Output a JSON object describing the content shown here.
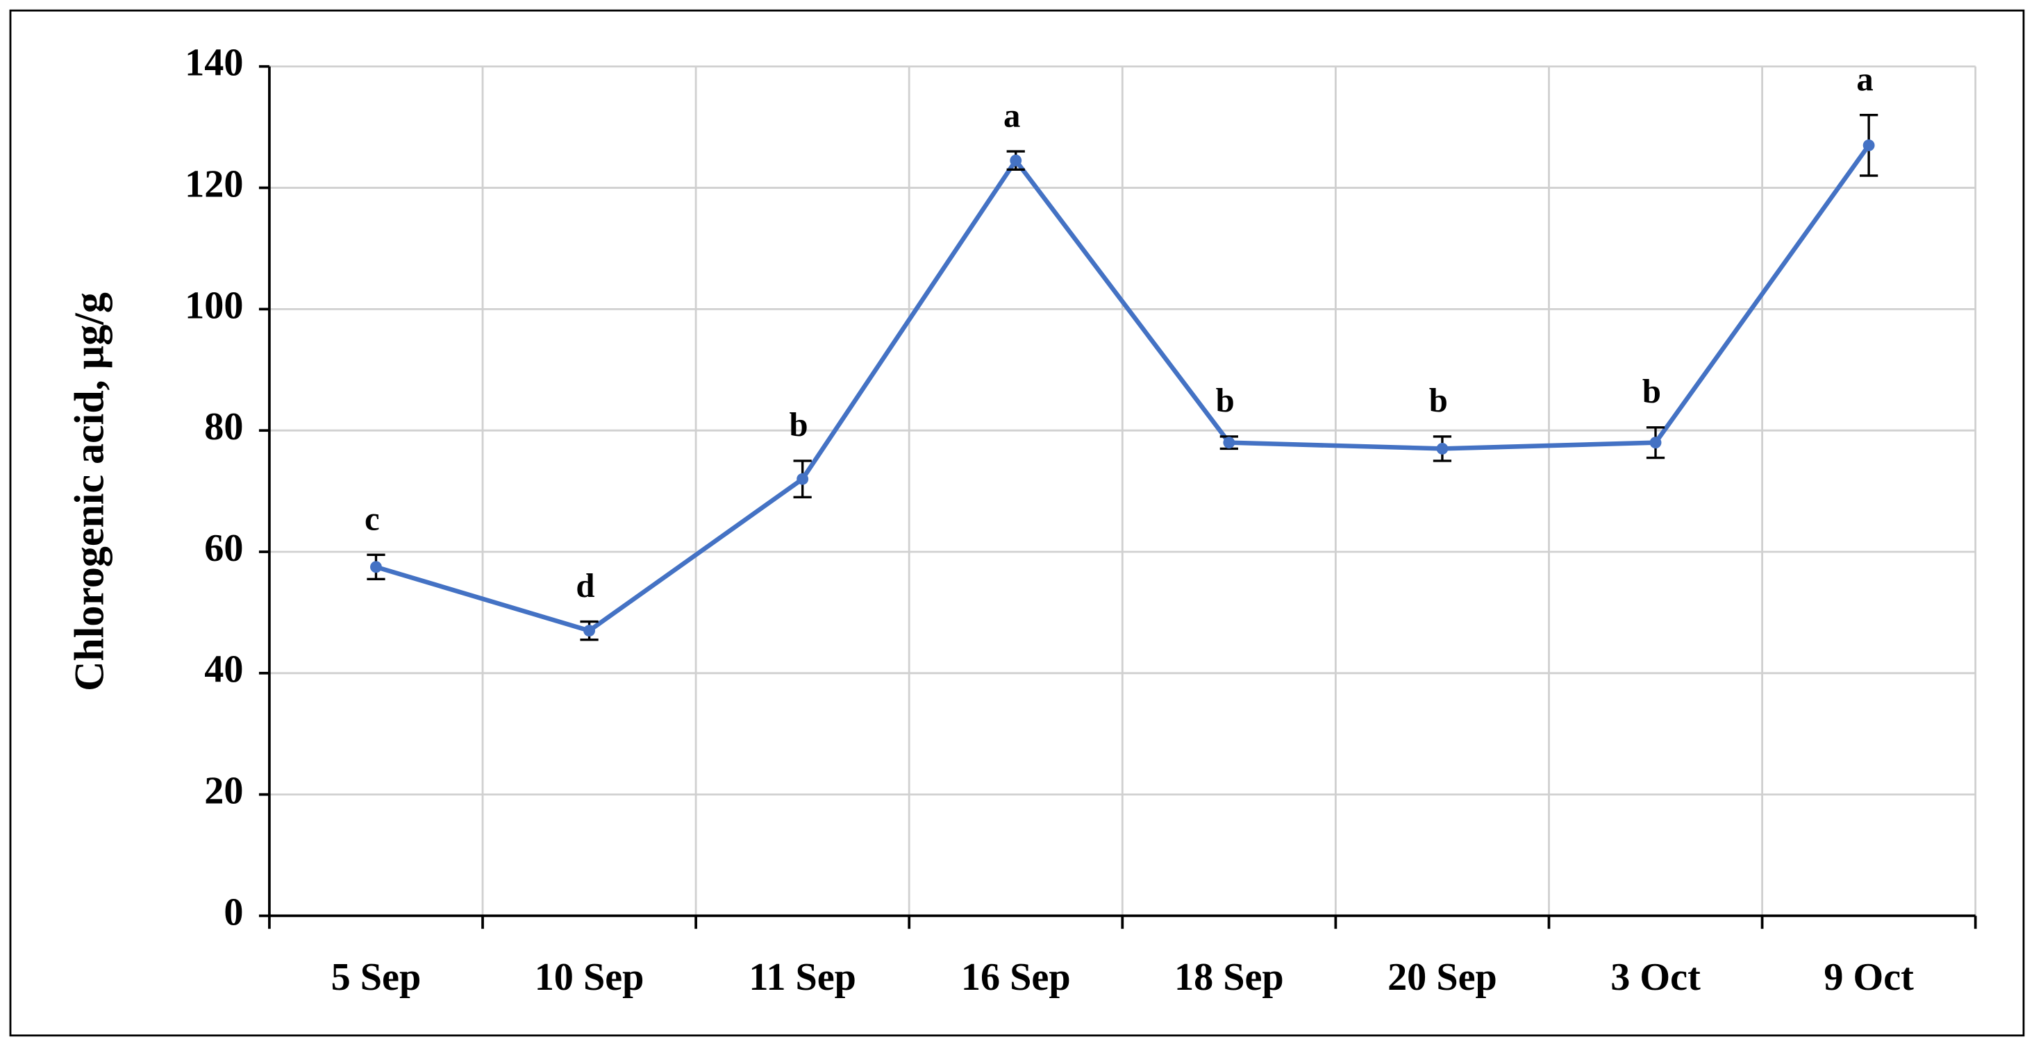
{
  "chart_data": {
    "type": "line",
    "y_label": "Chlorogenic  acid, µg/g",
    "categories": [
      "5 Sep",
      "10 Sep",
      "11 Sep",
      "16 Sep",
      "18 Sep",
      "20 Sep",
      "3 Oct",
      "9 Oct"
    ],
    "series": [
      {
        "color": "#4472c4",
        "values": [
          57.5,
          47,
          72,
          124.5,
          78,
          77,
          78,
          127
        ],
        "errors": [
          2,
          1.5,
          3,
          1.5,
          1,
          2,
          2.5,
          5
        ],
        "annotations": [
          "c",
          "d",
          "b",
          "a",
          "b",
          "b",
          "b",
          "a"
        ]
      }
    ],
    "ylim": [
      0,
      140
    ],
    "yticks": [
      0,
      20,
      40,
      60,
      80,
      100,
      120,
      140
    ],
    "grid": true
  }
}
